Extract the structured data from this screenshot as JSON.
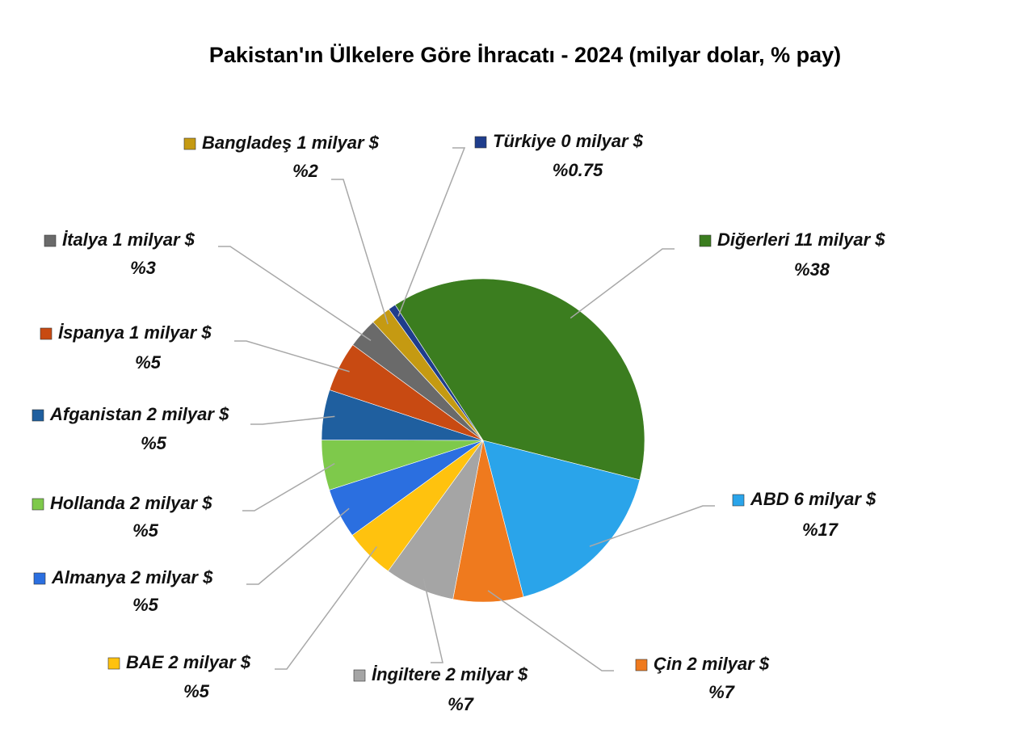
{
  "chart_data": {
    "type": "pie",
    "title": "Pakistan'ın Ülkelere Göre İhracatı - 2024 (milyar dolar, % pay)",
    "categories": [
      "Diğerleri 11 milyar $",
      "ABD 6 milyar $",
      "Çin 2 milyar $",
      "İngiltere 2 milyar $",
      "BAE 2 milyar $",
      "Almanya 2 milyar $",
      "Hollanda 2 milyar $",
      "Afganistan 2 milyar $",
      "İspanya 1 milyar $",
      "İtalya 1 milyar $",
      "Bangladeş 1 milyar $",
      "Türkiye 0 milyar $"
    ],
    "values": [
      38,
      17,
      7,
      7,
      5,
      5,
      5,
      5,
      5,
      3,
      2,
      0.75
    ],
    "value_labels": [
      "%38",
      "%17",
      "%7",
      "%7",
      "%5",
      "%5",
      "%5",
      "%5",
      "%5",
      "%3",
      "%2",
      "%0.75"
    ],
    "colors": [
      "#3b7d1f",
      "#2aa4ea",
      "#ef7a1e",
      "#a5a5a5",
      "#ffc20e",
      "#2b6fe0",
      "#7ec94b",
      "#1f5f9f",
      "#c84a12",
      "#6a6a6a",
      "#c59a12",
      "#1f3d8c"
    ]
  }
}
